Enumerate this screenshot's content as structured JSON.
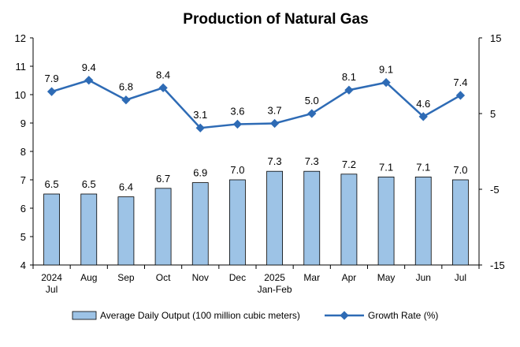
{
  "chart_data": {
    "type": "bar+line",
    "title": "Production of Natural Gas",
    "categories": [
      [
        "2024",
        "Jul"
      ],
      [
        "Aug"
      ],
      [
        "Sep"
      ],
      [
        "Oct"
      ],
      [
        "Nov"
      ],
      [
        "Dec"
      ],
      [
        "2025",
        "Jan-Feb"
      ],
      [
        "Mar"
      ],
      [
        "Apr"
      ],
      [
        "May"
      ],
      [
        "Jun"
      ],
      [
        "Jul"
      ]
    ],
    "series": [
      {
        "name": "Average Daily Output (100 million cubic meters)",
        "kind": "bar",
        "axis": "left",
        "color": "#9DC3E6",
        "values": [
          6.5,
          6.5,
          6.4,
          6.7,
          6.9,
          7.0,
          7.3,
          7.3,
          7.2,
          7.1,
          7.1,
          7.0
        ],
        "labels": [
          "6.5",
          "6.5",
          "6.4",
          "6.7",
          "6.9",
          "7.0",
          "7.3",
          "7.3",
          "7.2",
          "7.1",
          "7.1",
          "7.0"
        ]
      },
      {
        "name": "Growth Rate (%)",
        "kind": "line",
        "axis": "right",
        "color": "#2E6BB5",
        "values": [
          7.9,
          9.4,
          6.8,
          8.4,
          3.1,
          3.6,
          3.7,
          5.0,
          8.1,
          9.1,
          4.6,
          7.4
        ],
        "labels": [
          "7.9",
          "9.4",
          "6.8",
          "8.4",
          "3.1",
          "3.6",
          "3.7",
          "5.0",
          "8.1",
          "9.1",
          "4.6",
          "7.4"
        ]
      }
    ],
    "y_left": {
      "min": 4,
      "max": 12,
      "ticks": [
        "4",
        "5",
        "6",
        "7",
        "8",
        "9",
        "10",
        "11",
        "12"
      ]
    },
    "y_right": {
      "min": -15,
      "max": 15,
      "ticks": [
        "-15",
        "-5",
        "5",
        "15"
      ]
    },
    "legend_position": "bottom",
    "grid": false
  }
}
